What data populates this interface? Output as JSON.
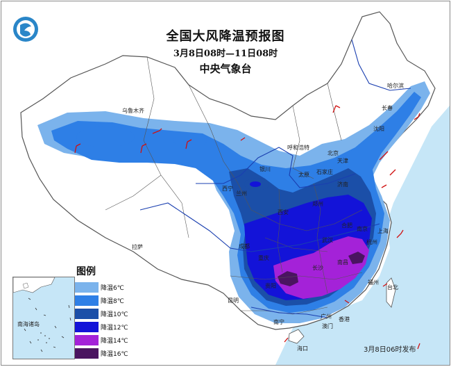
{
  "map": {
    "title": "全国大风降温预报图",
    "period": "3月8日08时—11日08时",
    "issuer": "中央气象台",
    "issued": "3月8日06时发布",
    "logo_icon": "cma-logo-icon",
    "land_color": "#ffffff",
    "sea_color": "#c6e6f7",
    "boundary_color": "#555555",
    "river_color": "#1a3fb0",
    "wind_barb_color": "#d01010"
  },
  "legend": {
    "title": "图例",
    "items": [
      {
        "label": "降温6℃",
        "color": "#7bb3ec"
      },
      {
        "label": "降温8℃",
        "color": "#2e7fe6"
      },
      {
        "label": "降温10℃",
        "color": "#1b4fa8"
      },
      {
        "label": "降温12℃",
        "color": "#1313d8"
      },
      {
        "label": "降温14℃",
        "color": "#a422d8"
      },
      {
        "label": "降温16℃",
        "color": "#4a1460"
      }
    ]
  },
  "inset": {
    "label": "南海诸岛"
  },
  "cities": [
    {
      "name": "乌鲁木齐"
    },
    {
      "name": "哈尔滨"
    },
    {
      "name": "长春"
    },
    {
      "name": "沈阳"
    },
    {
      "name": "呼和浩特"
    },
    {
      "name": "北京"
    },
    {
      "name": "天津"
    },
    {
      "name": "银川"
    },
    {
      "name": "太原"
    },
    {
      "name": "石家庄"
    },
    {
      "name": "西宁"
    },
    {
      "name": "兰州"
    },
    {
      "name": "济南"
    },
    {
      "name": "郑州"
    },
    {
      "name": "西安"
    },
    {
      "name": "合肥"
    },
    {
      "name": "南京"
    },
    {
      "name": "上海"
    },
    {
      "name": "杭州"
    },
    {
      "name": "武汉"
    },
    {
      "name": "成都"
    },
    {
      "name": "重庆"
    },
    {
      "name": "长沙"
    },
    {
      "name": "南昌"
    },
    {
      "name": "拉萨"
    },
    {
      "name": "贵阳"
    },
    {
      "name": "昆明"
    },
    {
      "name": "福州"
    },
    {
      "name": "台北"
    },
    {
      "name": "南宁"
    },
    {
      "name": "广州"
    },
    {
      "name": "香港"
    },
    {
      "name": "澳门"
    },
    {
      "name": "海口"
    }
  ]
}
